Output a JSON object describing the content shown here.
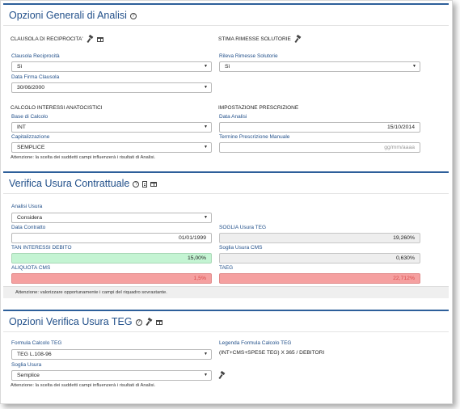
{
  "general": {
    "title": "Opzioni Generali di Analisi",
    "clausola_group": "CLAUSOLA DI RECIPROCITA'",
    "stima_group": "STIMA RIMESSE SOLUTORIE",
    "clausola_label": "Clausola Reciprocità",
    "clausola_value": "Sì",
    "rileva_label": "Rileva Rimesse Solutorie",
    "rileva_value": "Sì",
    "data_firma_label": "Data Firma Clausola",
    "data_firma_value": "30/06/2000",
    "calcolo_group": "CALCOLO INTERESSI ANATOCISTICI",
    "prescrizione_group": "IMPOSTAZIONE PRESCRIZIONE",
    "base_label": "Base di Calcolo",
    "base_value": "INT",
    "data_analisi_label": "Data Analisi",
    "data_analisi_value": "15/10/2014",
    "cap_label": "Capitalizzazione",
    "cap_value": "SEMPLICE",
    "termine_label": "Termine Prescrizione Manuale",
    "termine_placeholder": "gg/mm/aaaa",
    "note": "Attenzione: la scelta dei suddetti campi influenzerà i risultati di Analisi."
  },
  "usura": {
    "title": "Verifica Usura Contrattuale",
    "analisi_label": "Analisi Usura",
    "analisi_value": "Considera",
    "data_contratto_label": "Data Contratto",
    "data_contratto_value": "01/01/1999",
    "soglia_teg_label": "SOGLIA Usura TEG",
    "soglia_teg_value": "19,260%",
    "tan_label": "TAN INTERESSI DEBITO",
    "tan_value": "15,00%",
    "soglia_cms_label": "Soglia Usura CMS",
    "soglia_cms_value": "0,630%",
    "aliquota_label": "ALIQUOTA CMS",
    "aliquota_value": "1,5%",
    "taeg_label": "TAEG",
    "taeg_value": "22,712%",
    "warning": "Attenzione: valorizzare opportunamente i campi del riquadro sovrastante."
  },
  "teg": {
    "title": "Opzioni Verifica Usura TEG",
    "formula_label": "Formula Calcolo TEG",
    "formula_value": "TEG L.108-96",
    "legenda_label": "Legenda Formula Calcolo TEG",
    "legenda_value": "(INT+CMS+SPESE TEG) X 365 / DEBITORI",
    "soglia_label": "Soglia Usura",
    "soglia_value": "Semplice",
    "note": "Attenzione: la scelta dei suddetti campi influenzerà i risultati di Analisi."
  },
  "colors": {
    "title_blue": "#22508a",
    "border_blue": "#2d5f9a",
    "green_field": "#c4f4d3",
    "red_field": "#f5a0a0"
  }
}
